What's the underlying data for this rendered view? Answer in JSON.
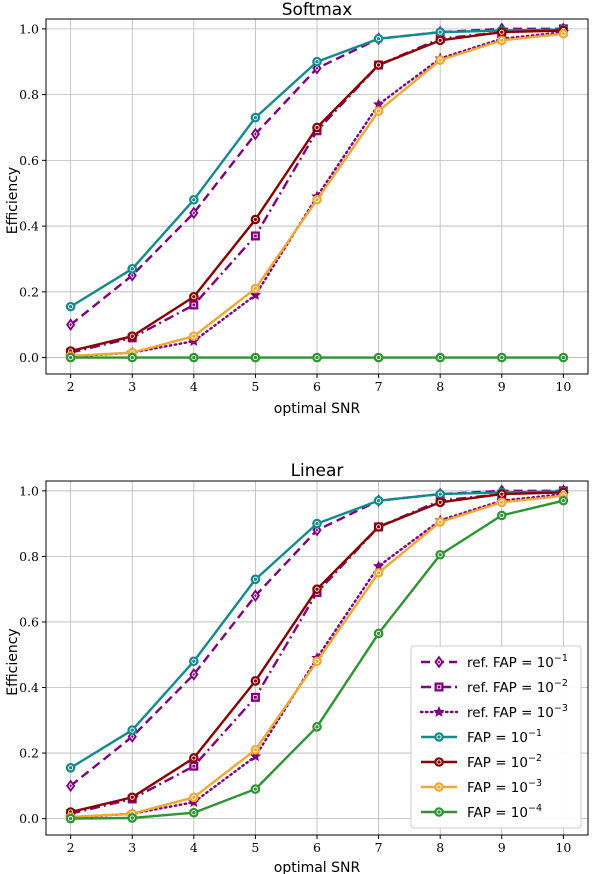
{
  "chart_data": [
    {
      "type": "line",
      "title": "Softmax",
      "xlabel": "optimal SNR",
      "ylabel": "Efficiency",
      "x": [
        2,
        3,
        4,
        5,
        6,
        7,
        8,
        9,
        10
      ],
      "xticks": [
        "2",
        "3",
        "4",
        "5",
        "6",
        "7",
        "8",
        "9",
        "10"
      ],
      "yticks": [
        "0.0",
        "0.2",
        "0.4",
        "0.6",
        "0.8",
        "1.0"
      ],
      "xlim": [
        1.6,
        10.4
      ],
      "ylim": [
        -0.05,
        1.03
      ],
      "grid": true,
      "legend": "none",
      "series": [
        {
          "key": "ref1",
          "values": [
            0.1,
            0.25,
            0.44,
            0.68,
            0.88,
            0.97,
            0.99,
            1.0,
            1.0
          ],
          "color": "#800080",
          "dash": "dashed",
          "marker": "diamond"
        },
        {
          "key": "ref2",
          "values": [
            0.015,
            0.06,
            0.16,
            0.37,
            0.69,
            0.89,
            0.97,
            0.99,
            1.0
          ],
          "color": "#800080",
          "dash": "dashdot",
          "marker": "square"
        },
        {
          "key": "ref3",
          "values": [
            0.003,
            0.015,
            0.05,
            0.19,
            0.49,
            0.77,
            0.91,
            0.97,
            0.99
          ],
          "color": "#800080",
          "dash": "dotted",
          "marker": "star"
        },
        {
          "key": "fap1",
          "values": [
            0.155,
            0.27,
            0.48,
            0.73,
            0.9,
            0.97,
            0.99,
            0.995,
            0.998
          ],
          "color": "#128a8e",
          "dash": "solid",
          "marker": "circle"
        },
        {
          "key": "fap2",
          "values": [
            0.02,
            0.065,
            0.185,
            0.42,
            0.7,
            0.89,
            0.965,
            0.99,
            0.995
          ],
          "color": "#8b0000",
          "dash": "solid",
          "marker": "circle"
        },
        {
          "key": "fap3",
          "values": [
            0.005,
            0.015,
            0.065,
            0.21,
            0.48,
            0.75,
            0.905,
            0.965,
            0.985
          ],
          "color": "#f0a830",
          "dash": "solid",
          "marker": "circle"
        },
        {
          "key": "fap4",
          "values": [
            0.0,
            0.0,
            0.0,
            0.0,
            0.0,
            0.0,
            0.0,
            0.0,
            0.0
          ],
          "color": "#2e9433",
          "dash": "solid",
          "marker": "circle"
        }
      ]
    },
    {
      "type": "line",
      "title": "Linear",
      "xlabel": "optimal SNR",
      "ylabel": "Efficiency",
      "x": [
        2,
        3,
        4,
        5,
        6,
        7,
        8,
        9,
        10
      ],
      "xticks": [
        "2",
        "3",
        "4",
        "5",
        "6",
        "7",
        "8",
        "9",
        "10"
      ],
      "yticks": [
        "0.0",
        "0.2",
        "0.4",
        "0.6",
        "0.8",
        "1.0"
      ],
      "xlim": [
        1.6,
        10.4
      ],
      "ylim": [
        -0.05,
        1.03
      ],
      "grid": true,
      "legend": "lower-right",
      "series": [
        {
          "key": "ref1",
          "name": "ref. FAP = 10",
          "exp": "−1",
          "values": [
            0.1,
            0.25,
            0.44,
            0.68,
            0.88,
            0.97,
            0.99,
            1.0,
            1.0
          ],
          "color": "#800080",
          "dash": "dashed",
          "marker": "diamond"
        },
        {
          "key": "ref2",
          "name": "ref. FAP = 10",
          "exp": "−2",
          "values": [
            0.015,
            0.06,
            0.16,
            0.37,
            0.69,
            0.89,
            0.97,
            0.99,
            1.0
          ],
          "color": "#800080",
          "dash": "dashdot",
          "marker": "square"
        },
        {
          "key": "ref3",
          "name": "ref. FAP = 10",
          "exp": "−3",
          "values": [
            0.003,
            0.015,
            0.05,
            0.19,
            0.49,
            0.77,
            0.91,
            0.97,
            0.99
          ],
          "color": "#800080",
          "dash": "dotted",
          "marker": "star"
        },
        {
          "key": "fap1",
          "name": "FAP = 10",
          "exp": "−1",
          "values": [
            0.155,
            0.27,
            0.48,
            0.73,
            0.9,
            0.97,
            0.99,
            0.995,
            0.998
          ],
          "color": "#128a8e",
          "dash": "solid",
          "marker": "circle"
        },
        {
          "key": "fap2",
          "name": "FAP = 10",
          "exp": "−2",
          "values": [
            0.02,
            0.065,
            0.185,
            0.42,
            0.7,
            0.89,
            0.965,
            0.99,
            0.995
          ],
          "color": "#8b0000",
          "dash": "solid",
          "marker": "circle"
        },
        {
          "key": "fap3",
          "name": "FAP = 10",
          "exp": "−3",
          "values": [
            0.005,
            0.015,
            0.065,
            0.21,
            0.48,
            0.75,
            0.905,
            0.965,
            0.985
          ],
          "color": "#f0a830",
          "dash": "solid",
          "marker": "circle"
        },
        {
          "key": "fap4",
          "name": "FAP = 10",
          "exp": "−4",
          "values": [
            0.0,
            0.002,
            0.018,
            0.09,
            0.28,
            0.565,
            0.805,
            0.925,
            0.97
          ],
          "color": "#2e9433",
          "dash": "solid",
          "marker": "circle"
        }
      ]
    }
  ]
}
